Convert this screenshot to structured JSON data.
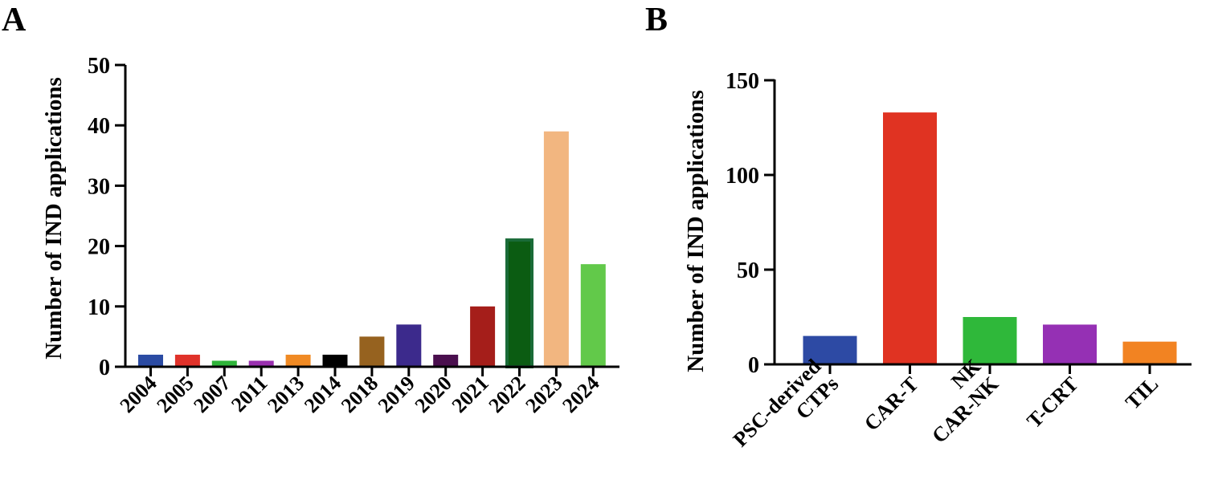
{
  "chart_data": [
    {
      "panel": "A",
      "type": "bar",
      "title": "",
      "xlabel": "",
      "ylabel": "Number of IND applications",
      "ylim": [
        0,
        50
      ],
      "yticks": [
        0,
        10,
        20,
        30,
        40,
        50
      ],
      "categories": [
        "2004",
        "2005",
        "2007",
        "2011",
        "2013",
        "2014",
        "2018",
        "2019",
        "2020",
        "2021",
        "2022",
        "2023",
        "2024"
      ],
      "values": [
        2,
        2,
        1,
        1,
        2,
        2,
        5,
        7,
        2,
        10,
        21,
        39,
        17
      ],
      "colors": [
        "#2b4ba3",
        "#e0322a",
        "#2fb53a",
        "#9a30b0",
        "#f08a24",
        "#000000",
        "#96621f",
        "#3c2a8c",
        "#4a0f4e",
        "#a51e1a",
        "#0b5c12",
        "#f2b680",
        "#62c94a"
      ]
    },
    {
      "panel": "B",
      "type": "bar",
      "title": "",
      "xlabel": "",
      "ylabel": "Number of IND applications",
      "ylim": [
        0,
        150
      ],
      "yticks": [
        0,
        50,
        100,
        150
      ],
      "categories": [
        [
          "PSC-derived",
          "CTPs"
        ],
        [
          "CAR-T"
        ],
        [
          "NK",
          "CAR-NK"
        ],
        [
          "T-CRT"
        ],
        [
          "TIL"
        ]
      ],
      "values": [
        15,
        133,
        25,
        21,
        12
      ],
      "colors": [
        "#2d4aa4",
        "#e03322",
        "#2fb83a",
        "#9530b4",
        "#f28322"
      ]
    }
  ],
  "bar_outline_2022": "#1a6b38"
}
